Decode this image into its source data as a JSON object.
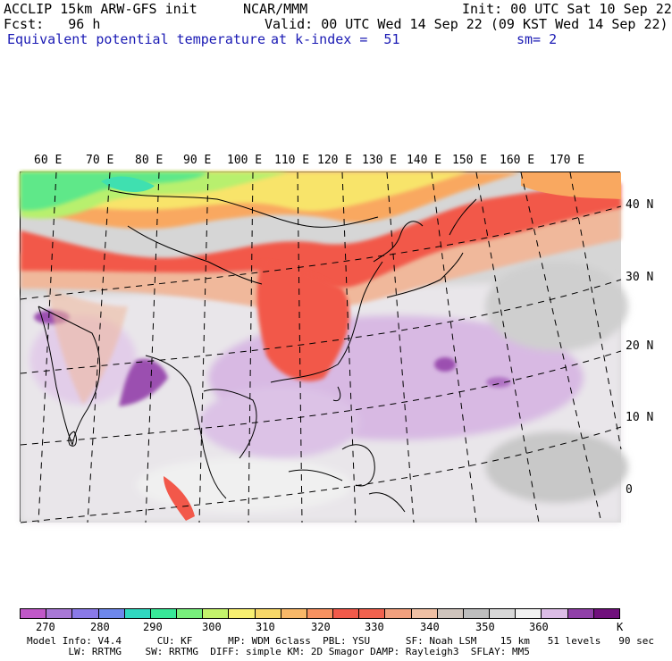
{
  "header": {
    "line1_left": "ACCLIP 15km ARW-GFS init",
    "line1_mid": "NCAR/MMM",
    "line1_right": "Init: 00 UTC Sat 10 Sep 22",
    "line2_left": "Fcst:   96 h",
    "line2_right": "Valid: 00 UTC Wed 14 Sep 22 (09 KST Wed 14 Sep 22)",
    "line3_field": "Equivalent potential temperature",
    "line3_level": "at k-index =  51",
    "line3_smooth": "sm= 2"
  },
  "map": {
    "lon_labels": [
      "60 E",
      "70 E",
      "80 E",
      "90 E",
      "100 E",
      "110 E",
      "120 E",
      "130 E",
      "140 E",
      "150 E",
      "160 E",
      "170 E"
    ],
    "lat_labels": [
      "40 N",
      "30 N",
      "20 N",
      "10 N",
      "0"
    ],
    "colors": {
      "purple": "#9b4fb0",
      "lilac": "#d8b9e3",
      "white": "#f4f4f4",
      "lightgray": "#d6d6d6",
      "gray": "#bdbdbd",
      "peach": "#f0b89b",
      "salmon": "#f58a6e",
      "red": "#f2584a",
      "orange": "#f9a860",
      "yellow": "#f8e46a",
      "lime": "#b8f06e",
      "green": "#5ee889",
      "cyan": "#3fe0b0"
    }
  },
  "legend": {
    "colors": [
      "#c058c8",
      "#a878d6",
      "#8a7ae8",
      "#6e88ec",
      "#30d8c0",
      "#38e898",
      "#78f07c",
      "#c4f46c",
      "#f8f070",
      "#f8d868",
      "#f8b868",
      "#f89260",
      "#f25a4a",
      "#f2624e",
      "#f2a07e",
      "#f0c0a4",
      "#cfc4bc",
      "#bebebe",
      "#d8d8d8",
      "#f2f2f2",
      "#dcbce6",
      "#9040a8",
      "#70107c"
    ],
    "tick_labels": [
      "270",
      "280",
      "290",
      "300",
      "310",
      "320",
      "330",
      "340",
      "350",
      "360",
      "K"
    ]
  },
  "footer": {
    "line1": "Model Info: V4.4      CU: KF      MP: WDM 6class  PBL: YSU      SF: Noah LSM    15 km   51 levels   90 sec",
    "line2": "       LW: RRTMG    SW: RRTMG  DIFF: simple KM: 2D Smagor DAMP: Rayleigh3  SFLAY: MM5"
  }
}
